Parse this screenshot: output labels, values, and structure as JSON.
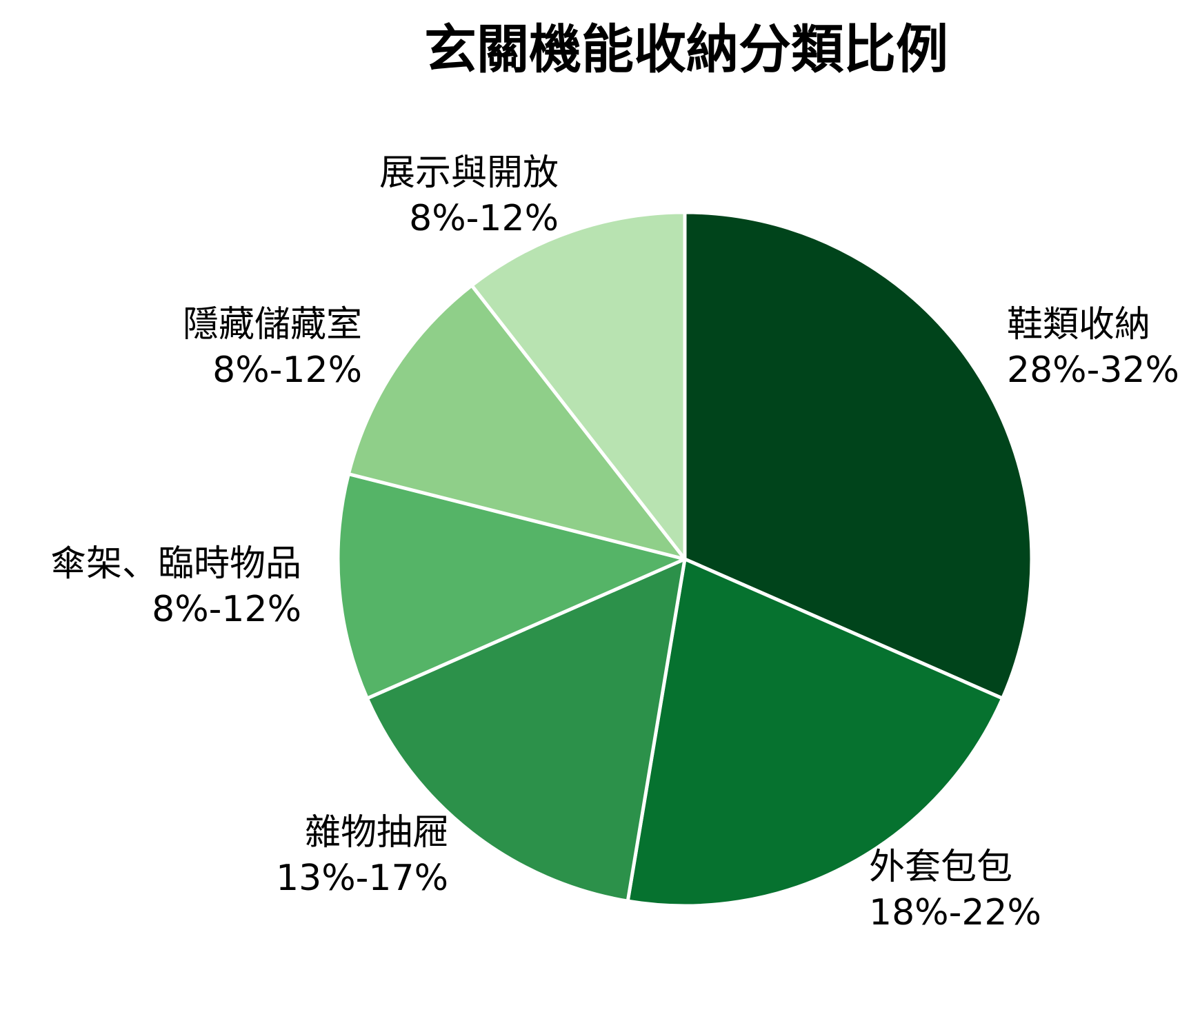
{
  "chart_data": {
    "type": "pie",
    "title": "玄關機能收納分類比例",
    "start_angle": "12 o'clock",
    "direction": "clockwise",
    "slices": [
      {
        "name": "鞋類收納",
        "range_label": "28%-32%",
        "value": 30,
        "color": "#00441b"
      },
      {
        "name": "外套包包",
        "range_label": "18%-22%",
        "value": 20,
        "color": "#06722f"
      },
      {
        "name": "雜物抽屜",
        "range_label": "13%-17%",
        "value": 15,
        "color": "#2c914a"
      },
      {
        "name": "傘架、臨時物品",
        "range_label": "8%-12%",
        "value": 10,
        "color": "#55b467"
      },
      {
        "name": "隱藏儲藏室",
        "range_label": "8%-12%",
        "value": 10,
        "color": "#8fcf89"
      },
      {
        "name": "展示與開放",
        "range_label": "8%-12%",
        "value": 10,
        "color": "#b8e3b1"
      }
    ],
    "slice_border_color": "#ffffff"
  }
}
